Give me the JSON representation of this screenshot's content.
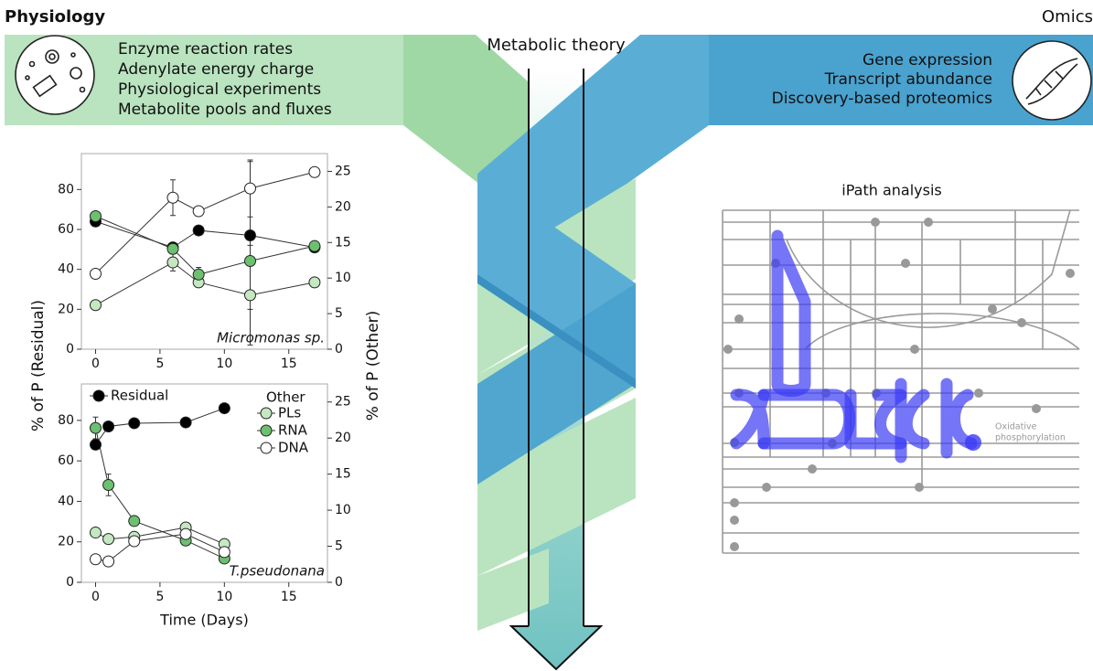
{
  "header": {
    "left_title": "Physiology",
    "right_title": "Omics",
    "center_title": "Metabolic theory"
  },
  "physiology": {
    "items": [
      "Enzyme reaction rates",
      "Adenylate energy charge",
      "Physiological experiments",
      "Metabolite pools and fluxes"
    ]
  },
  "omics": {
    "items": [
      "Gene expression",
      "Transcript abundance",
      "Discovery-based proteomics"
    ]
  },
  "ipath": {
    "title": "iPath analysis",
    "pathway_label": [
      "Oxidative",
      "phosphorylation"
    ]
  },
  "chart_data": [
    {
      "type": "line",
      "annotation": "Micromonas sp.",
      "ylabel": "% of P (Residual)",
      "y2label": "% of P (Other)",
      "x": [
        0,
        6,
        8,
        12,
        17
      ],
      "xlim": [
        -1.1,
        18
      ],
      "xticks": [
        0,
        5,
        10,
        15
      ],
      "ylim": [
        0,
        98
      ],
      "yticks": [
        0,
        20,
        40,
        60,
        80
      ],
      "y2lim": [
        0,
        27.5
      ],
      "y2ticks": [
        0,
        5,
        10,
        15,
        20,
        25
      ],
      "series": [
        {
          "color": "#000000",
          "values": [
            64,
            51,
            59.5,
            57,
            51
          ],
          "errors": [
            null,
            null,
            null,
            37,
            2
          ]
        },
        {
          "axis": "y2",
          "color": "#c5e8c3",
          "values": [
            6.2,
            12.2,
            9.4,
            7.6,
            9.4
          ],
          "errors": [
            null,
            1.2,
            null,
            7,
            null
          ]
        },
        {
          "axis": "y2",
          "color": "#6cc070",
          "values": [
            18.7,
            14.1,
            10.5,
            12.4,
            14.5
          ],
          "errors": [
            null,
            null,
            1,
            null,
            null
          ]
        },
        {
          "axis": "y2",
          "color": "#ffffff",
          "values": [
            10.6,
            21.3,
            19.4,
            22.6,
            24.9
          ],
          "errors": [
            null,
            2.5,
            null,
            4,
            null
          ]
        }
      ]
    },
    {
      "type": "line",
      "annotation": "T.pseudonana",
      "xlabel": "Time (Days)",
      "legend_title": "Other",
      "x": [
        0,
        1,
        3,
        7,
        10
      ],
      "xlim": [
        -1.1,
        18
      ],
      "xticks": [
        0,
        5,
        10,
        15
      ],
      "ylim": [
        0,
        98
      ],
      "yticks": [
        0,
        20,
        40,
        60,
        80
      ],
      "y2lim": [
        0,
        27.5
      ],
      "y2ticks": [
        0,
        5,
        10,
        15,
        20,
        25
      ],
      "series": [
        {
          "name": "Residual",
          "color": "#000000",
          "values": [
            68,
            77,
            78.6,
            79,
            86
          ]
        },
        {
          "name": "PLs",
          "axis": "y2",
          "color": "#c5e8c3",
          "values": [
            6.9,
            6.0,
            6.3,
            7.6,
            5.3
          ]
        },
        {
          "name": "RNA",
          "axis": "y2",
          "color": "#6cc070",
          "values": [
            21.4,
            13.5,
            8.5,
            5.8,
            3.3
          ],
          "errors": [
            1.5,
            1.5,
            null,
            null,
            null
          ]
        },
        {
          "name": "DNA",
          "axis": "y2",
          "color": "#ffffff",
          "values": [
            3.2,
            2.9,
            5.7,
            6.7,
            4.2
          ]
        }
      ]
    }
  ]
}
